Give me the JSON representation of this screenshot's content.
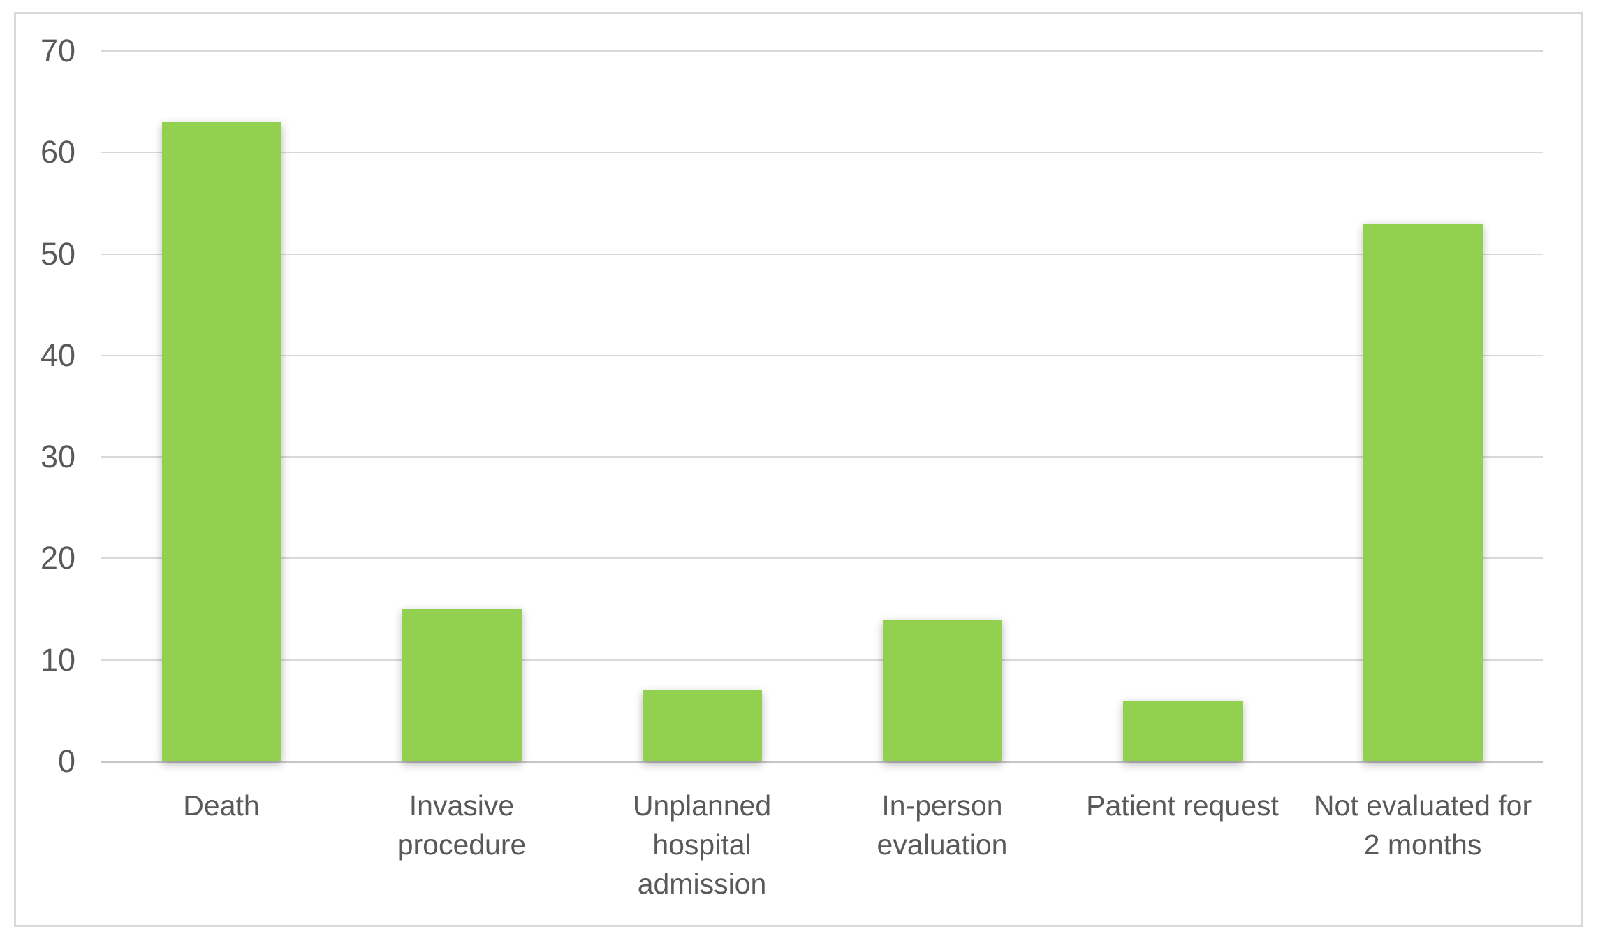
{
  "chart_data": {
    "type": "bar",
    "categories": [
      "Death",
      "Invasive procedure",
      "Unplanned hospital admission",
      "In-person evaluation",
      "Patient request",
      "Not evaluated for 2 months"
    ],
    "values": [
      63,
      15,
      7,
      14,
      6,
      53
    ],
    "category_label_lines": [
      [
        "Death"
      ],
      [
        "Invasive",
        "procedure"
      ],
      [
        "Unplanned",
        "hospital",
        "admission"
      ],
      [
        "In-person",
        "evaluation"
      ],
      [
        "Patient request"
      ],
      [
        "Not evaluated for",
        "2 months"
      ]
    ],
    "y_axis": {
      "ticks": [
        70,
        60,
        50,
        40,
        30,
        20,
        10,
        0
      ],
      "range": [
        0,
        70
      ]
    },
    "grid": "horizontal",
    "legend": "none",
    "colors": {
      "bar": "#92D050",
      "axis_text": "#595959",
      "gridline": "#D9D9D9",
      "axis_line": "#C6C6C6",
      "frame_border": "#D9D9D9",
      "background": "#FFFFFF"
    }
  }
}
